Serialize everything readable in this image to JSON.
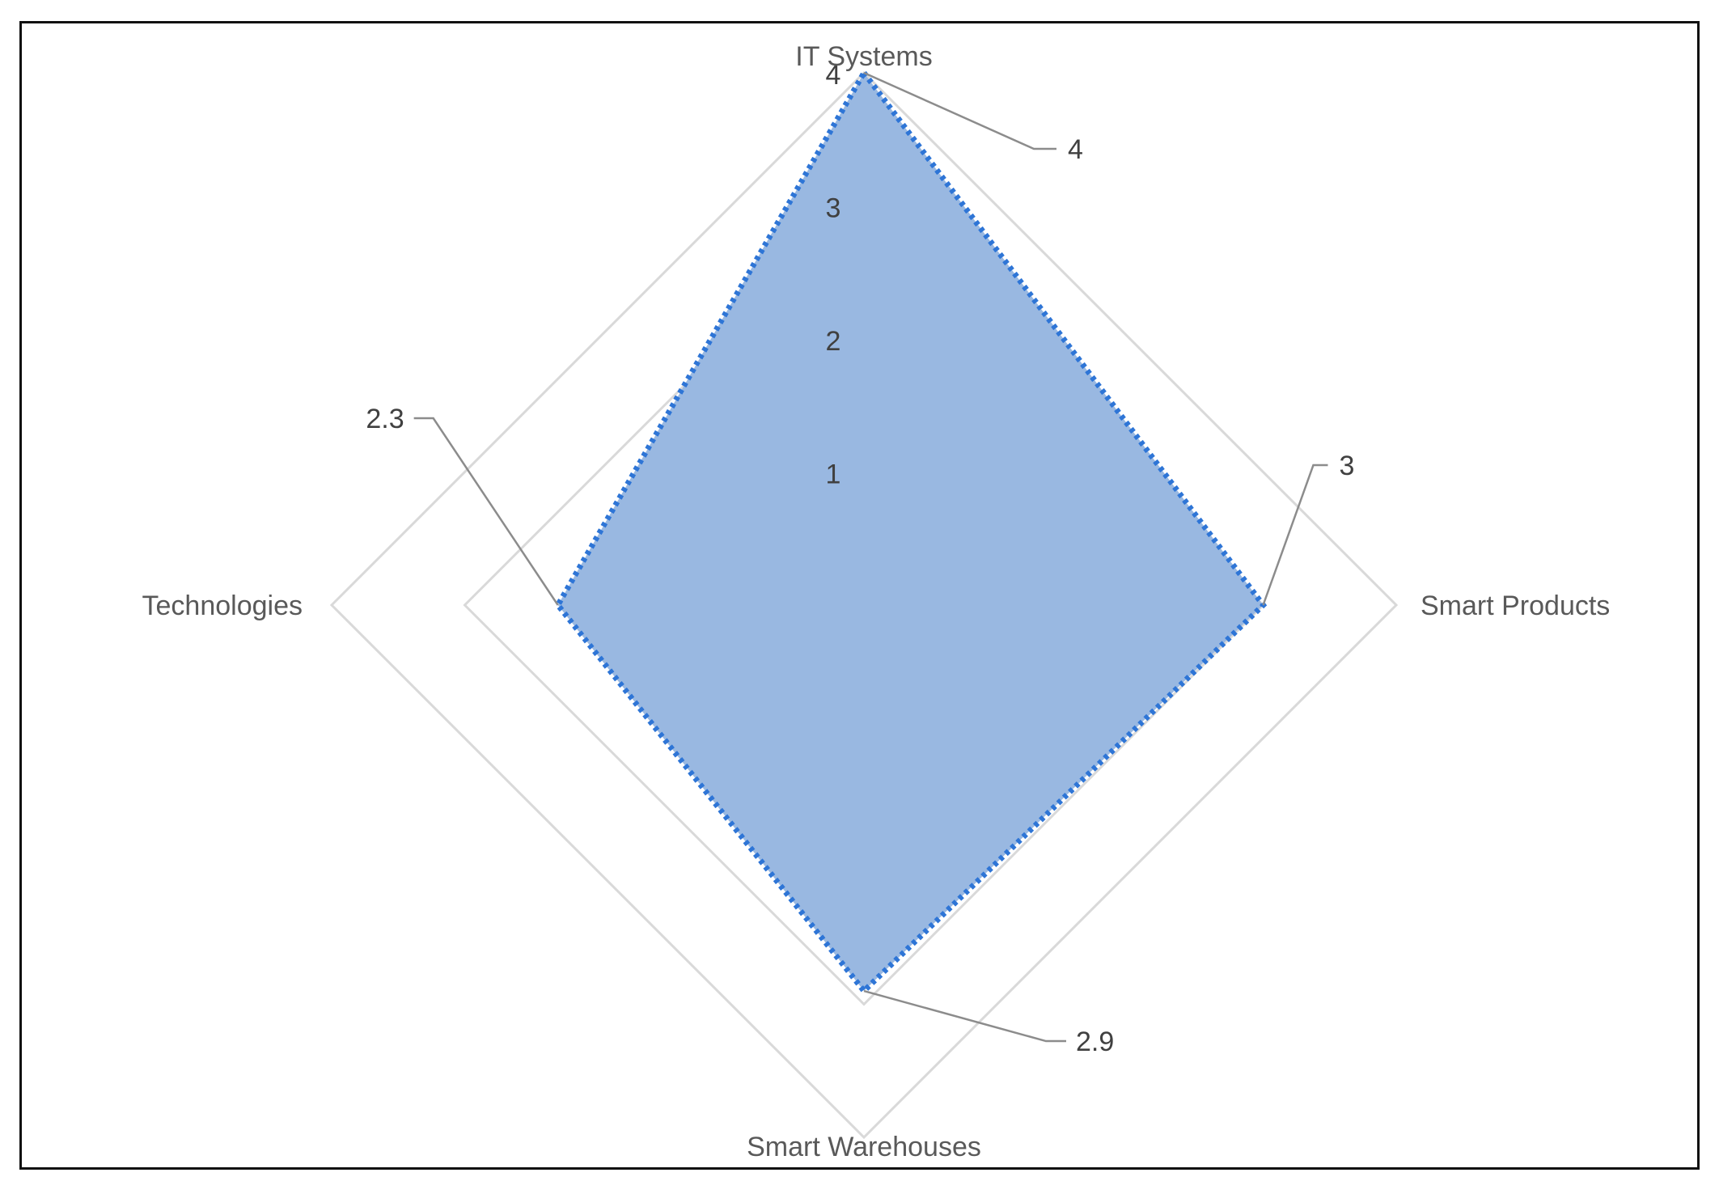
{
  "chart_data": {
    "type": "radar",
    "title": "",
    "axes": [
      "IT Systems",
      "Smart Products",
      "Smart Warehouses",
      "Technologies"
    ],
    "ticks": [
      "1",
      "2",
      "3",
      "4"
    ],
    "range": [
      0,
      4
    ],
    "series": [
      {
        "values": [
          4,
          3,
          2.9,
          2.3
        ],
        "data_labels": [
          "4",
          "3",
          "2.9",
          "2.3"
        ]
      }
    ],
    "colors": {
      "fill": "#99B8E1",
      "line": "#2E75D6",
      "grid": "#D9D9D9",
      "leader": "#8C8C8C"
    },
    "legend": "none"
  }
}
